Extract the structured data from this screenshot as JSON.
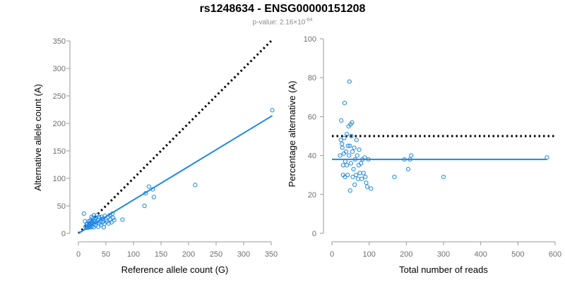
{
  "header": {
    "title": "rs1248634 - ENSG00000151208",
    "pvalue_prefix": "p-value: 2.16×10",
    "pvalue_exponent": "-64"
  },
  "chart_data": [
    {
      "type": "scatter",
      "xlabel": "Reference allele count (G)",
      "ylabel": "Alternative allele count (A)",
      "xlim": [
        0,
        350
      ],
      "ylim": [
        0,
        350
      ],
      "xticks": [
        0,
        50,
        100,
        150,
        200,
        250,
        300,
        350
      ],
      "yticks": [
        0,
        50,
        100,
        150,
        200,
        250,
        300,
        350
      ],
      "point_color": "#1e88e5",
      "points": [
        [
          10,
          36
        ],
        [
          12,
          22
        ],
        [
          13,
          12
        ],
        [
          15,
          16
        ],
        [
          16,
          18
        ],
        [
          17,
          10
        ],
        [
          18,
          14
        ],
        [
          19,
          22
        ],
        [
          20,
          18
        ],
        [
          21,
          12
        ],
        [
          22,
          24
        ],
        [
          22,
          11
        ],
        [
          23,
          16
        ],
        [
          24,
          30
        ],
        [
          25,
          18
        ],
        [
          25,
          13
        ],
        [
          26,
          27
        ],
        [
          27,
          22
        ],
        [
          28,
          17
        ],
        [
          28,
          11
        ],
        [
          30,
          25
        ],
        [
          31,
          15
        ],
        [
          32,
          28
        ],
        [
          33,
          20
        ],
        [
          35,
          24
        ],
        [
          36,
          12
        ],
        [
          37,
          30
        ],
        [
          38,
          18
        ],
        [
          40,
          22
        ],
        [
          41,
          15
        ],
        [
          42,
          30
        ],
        [
          44,
          20
        ],
        [
          45,
          27
        ],
        [
          47,
          17
        ],
        [
          48,
          32
        ],
        [
          50,
          25
        ],
        [
          52,
          22
        ],
        [
          54,
          30
        ],
        [
          55,
          18
        ],
        [
          57,
          33
        ],
        [
          58,
          25
        ],
        [
          60,
          20
        ],
        [
          62,
          36
        ],
        [
          63,
          28
        ],
        [
          65,
          24
        ],
        [
          80,
          25
        ],
        [
          120,
          50
        ],
        [
          122,
          73
        ],
        [
          128,
          85
        ],
        [
          135,
          80
        ],
        [
          137,
          66
        ],
        [
          212,
          88
        ],
        [
          352,
          224
        ],
        [
          24,
          20
        ],
        [
          34,
          33
        ],
        [
          46,
          11
        ],
        [
          15,
          10
        ],
        [
          19,
          13
        ],
        [
          43,
          26
        ],
        [
          28,
          33
        ]
      ],
      "dashed_line": [
        [
          0,
          0
        ],
        [
          350,
          350
        ]
      ],
      "fit_line": [
        [
          0,
          0
        ],
        [
          352,
          214
        ]
      ]
    },
    {
      "type": "scatter",
      "xlabel": "Total number of reads",
      "ylabel": "Percentage alternative (A)",
      "xlim": [
        0,
        600
      ],
      "ylim": [
        0,
        100
      ],
      "xticks": [
        0,
        100,
        200,
        300,
        400,
        500,
        600
      ],
      "yticks": [
        0,
        20,
        40,
        60,
        80,
        100
      ],
      "point_color": "#1e88e5",
      "points": [
        [
          22,
          40
        ],
        [
          24,
          48
        ],
        [
          25,
          58
        ],
        [
          27,
          46
        ],
        [
          28,
          44
        ],
        [
          30,
          35
        ],
        [
          30,
          30
        ],
        [
          32,
          41
        ],
        [
          33,
          49
        ],
        [
          34,
          67
        ],
        [
          35,
          29
        ],
        [
          36,
          37
        ],
        [
          38,
          42
        ],
        [
          40,
          51
        ],
        [
          40,
          35
        ],
        [
          42,
          30
        ],
        [
          43,
          45
        ],
        [
          45,
          55
        ],
        [
          46,
          40
        ],
        [
          47,
          78
        ],
        [
          48,
          45
        ],
        [
          49,
          22
        ],
        [
          50,
          56
        ],
        [
          51,
          36
        ],
        [
          52,
          50
        ],
        [
          54,
          57
        ],
        [
          55,
          42
        ],
        [
          56,
          29
        ],
        [
          58,
          33
        ],
        [
          60,
          44
        ],
        [
          61,
          25
        ],
        [
          62,
          38
        ],
        [
          65,
          30
        ],
        [
          66,
          48
        ],
        [
          68,
          40
        ],
        [
          70,
          28
        ],
        [
          72,
          35
        ],
        [
          73,
          43
        ],
        [
          75,
          31
        ],
        [
          78,
          36
        ],
        [
          80,
          28
        ],
        [
          82,
          38
        ],
        [
          85,
          31
        ],
        [
          88,
          39
        ],
        [
          90,
          29
        ],
        [
          92,
          26
        ],
        [
          95,
          24
        ],
        [
          98,
          38
        ],
        [
          105,
          23
        ],
        [
          168,
          29
        ],
        [
          195,
          38
        ],
        [
          205,
          33
        ],
        [
          210,
          38
        ],
        [
          213,
          40
        ],
        [
          300,
          29
        ],
        [
          578,
          39
        ]
      ],
      "dashed_line": [
        [
          0,
          50
        ],
        [
          600,
          50
        ]
      ],
      "fit_line": [
        [
          0,
          38
        ],
        [
          578,
          38
        ]
      ]
    }
  ]
}
